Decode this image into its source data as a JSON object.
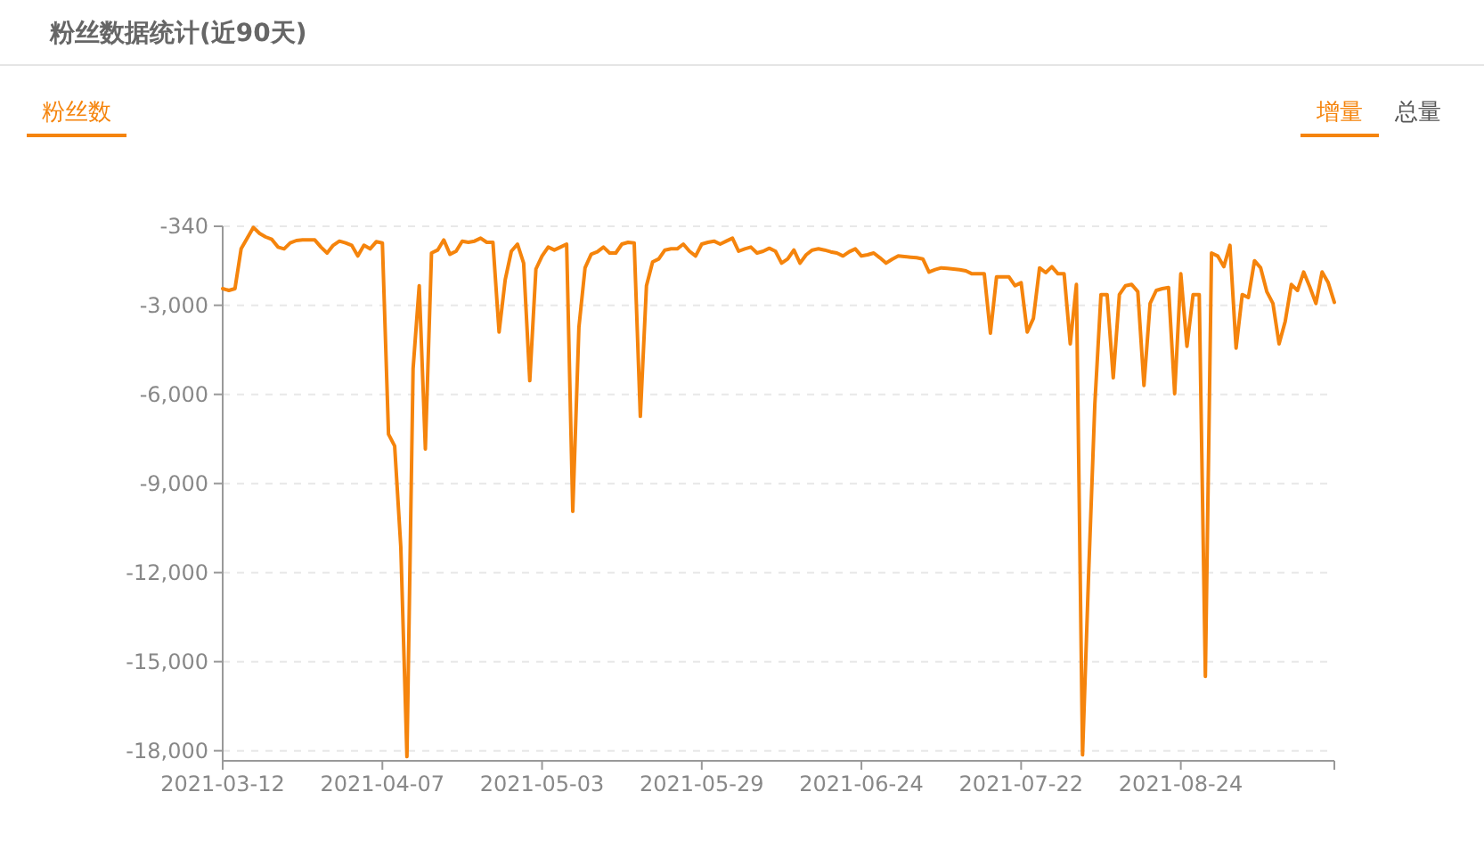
{
  "chart_data": {
    "type": "line",
    "title": "粉丝数据统计(近90天)",
    "annotations": [
      "粉丝数",
      "增量",
      "总量"
    ],
    "categories": [
      "2021-03-12",
      null,
      null,
      null,
      null,
      null,
      null,
      null,
      null,
      null,
      null,
      null,
      null,
      null,
      null,
      null,
      null,
      null,
      null,
      null,
      null,
      null,
      null,
      null,
      null,
      null,
      "2021-04-07",
      null,
      null,
      null,
      null,
      null,
      null,
      null,
      null,
      null,
      null,
      null,
      null,
      null,
      null,
      null,
      null,
      null,
      null,
      null,
      null,
      null,
      null,
      null,
      null,
      null,
      "2021-05-03",
      null,
      null,
      null,
      null,
      null,
      null,
      null,
      null,
      null,
      null,
      null,
      null,
      null,
      null,
      null,
      null,
      null,
      null,
      null,
      null,
      null,
      null,
      null,
      null,
      null,
      "2021-05-29",
      null,
      null,
      null,
      null,
      null,
      null,
      null,
      null,
      null,
      null,
      null,
      null,
      null,
      null,
      null,
      null,
      null,
      null,
      null,
      null,
      null,
      null,
      null,
      null,
      null,
      "2021-06-24",
      null,
      null,
      null,
      null,
      null,
      null,
      null,
      null,
      null,
      null,
      null,
      null,
      null,
      null,
      null,
      null,
      null,
      null,
      null,
      null,
      null,
      null,
      null,
      null,
      null,
      "2021-07-22",
      null,
      null,
      null,
      null,
      null,
      null,
      null,
      null,
      null,
      null,
      null,
      null,
      null,
      null,
      null,
      null,
      null,
      null,
      null,
      null,
      null,
      null,
      null,
      null,
      null,
      "2021-08-24",
      null,
      null,
      null,
      null,
      null,
      null,
      null,
      null,
      null,
      null,
      null,
      null,
      null,
      null,
      null,
      null,
      null,
      null,
      null,
      null,
      null,
      null,
      null,
      null,
      null
    ],
    "series": [
      {
        "color": "#f5840c",
        "values": [
          -2440,
          -2500,
          -2440,
          -1100,
          -740,
          -380,
          -580,
          -700,
          -780,
          -1040,
          -1100,
          -900,
          -820,
          -800,
          -800,
          -800,
          -1040,
          -1240,
          -980,
          -840,
          -900,
          -980,
          -1340,
          -980,
          -1100,
          -860,
          -900,
          -7340,
          -7740,
          -11140,
          -18200,
          -5140,
          -2340,
          -7840,
          -1240,
          -1140,
          -800,
          -1280,
          -1180,
          -840,
          -880,
          -840,
          -740,
          -880,
          -880,
          -3900,
          -2140,
          -1180,
          -940,
          -1580,
          -5540,
          -1780,
          -1340,
          -1040,
          -1140,
          -1040,
          -940,
          -9940,
          -3740,
          -1740,
          -1280,
          -1200,
          -1040,
          -1240,
          -1240,
          -940,
          -880,
          -900,
          -6740,
          -2340,
          -1540,
          -1440,
          -1140,
          -1100,
          -1100,
          -940,
          -1180,
          -1340,
          -940,
          -880,
          -840,
          -940,
          -840,
          -740,
          -1180,
          -1100,
          -1040,
          -1240,
          -1180,
          -1080,
          -1180,
          -1580,
          -1440,
          -1140,
          -1580,
          -1300,
          -1140,
          -1100,
          -1140,
          -1200,
          -1240,
          -1340,
          -1200,
          -1100,
          -1340,
          -1300,
          -1240,
          -1400,
          -1580,
          -1450,
          -1340,
          -1360,
          -1380,
          -1400,
          -1440,
          -1880,
          -1800,
          -1740,
          -1760,
          -1780,
          -1800,
          -1840,
          -1940,
          -1940,
          -1940,
          -3940,
          -2040,
          -2040,
          -2040,
          -2340,
          -2240,
          -3900,
          -3440,
          -1740,
          -1900,
          -1700,
          -1940,
          -1940,
          -4300,
          -2300,
          -18140,
          -12000,
          -6340,
          -2640,
          -2640,
          -5440,
          -2640,
          -2340,
          -2300,
          -2540,
          -5700,
          -2940,
          -2500,
          -2440,
          -2400,
          -5980,
          -1940,
          -4380,
          -2640,
          -2640,
          -15500,
          -1240,
          -1340,
          -1700,
          -980,
          -4440,
          -2640,
          -2740,
          -1500,
          -1740,
          -2540,
          -2940,
          -4300,
          -3540,
          -2300,
          -2500,
          -1880,
          -2380,
          -2940,
          -1880,
          -2240,
          -2900
        ]
      }
    ],
    "ylim": [
      -18340,
      -340
    ],
    "yticks": [
      -340,
      {
        "value": -3000,
        "label": "-3,000"
      },
      {
        "value": -6000,
        "label": "-6,000"
      },
      {
        "value": -9000,
        "label": "-9,000"
      },
      {
        "value": -12000,
        "label": "-12,000"
      },
      {
        "value": -15000,
        "label": "-15,000"
      },
      {
        "value": -18000,
        "label": "-18,000"
      }
    ],
    "grid": "y",
    "marker": "none",
    "line_style": "solid"
  }
}
